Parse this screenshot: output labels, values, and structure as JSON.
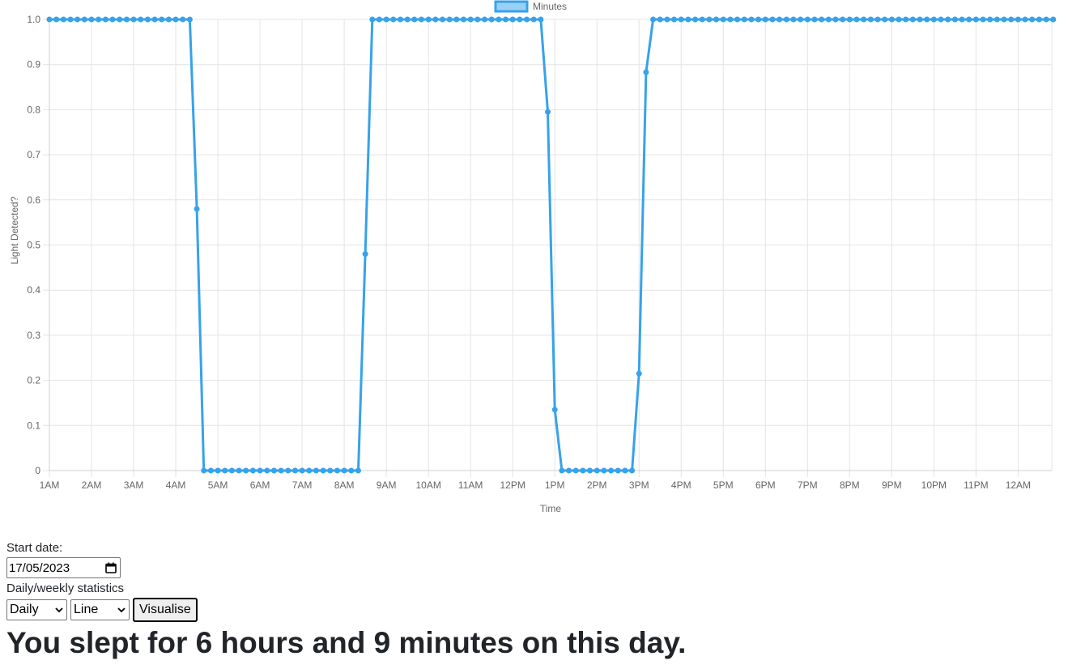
{
  "chart_data": {
    "type": "line",
    "xlabel": "Time",
    "ylabel": "Light Detected?",
    "ylim": [
      0,
      1
    ],
    "y_ticks": [
      "0",
      "0.1",
      "0.2",
      "0.3",
      "0.4",
      "0.5",
      "0.6",
      "0.7",
      "0.8",
      "0.9",
      "1.0"
    ],
    "x_ticks": [
      "1AM",
      "2AM",
      "3AM",
      "4AM",
      "5AM",
      "6AM",
      "7AM",
      "8AM",
      "9AM",
      "10AM",
      "11AM",
      "12PM",
      "1PM",
      "2PM",
      "3PM",
      "4PM",
      "5PM",
      "6PM",
      "7PM",
      "8PM",
      "9PM",
      "10PM",
      "11PM",
      "12AM"
    ],
    "x_unit": "hour of day (1 = 1AM, 24 = 12AM)",
    "xlim": [
      1,
      24.8
    ],
    "grid": true,
    "legend_position": "top",
    "series": [
      {
        "name": "Minutes",
        "color": "#36a2eb",
        "fill": "#9ad0f5",
        "points": [
          [
            1.0,
            1
          ],
          [
            1.1667,
            1
          ],
          [
            1.3333,
            1
          ],
          [
            1.5,
            1
          ],
          [
            1.6667,
            1
          ],
          [
            1.8333,
            1
          ],
          [
            2.0,
            1
          ],
          [
            2.1667,
            1
          ],
          [
            2.3333,
            1
          ],
          [
            2.5,
            1
          ],
          [
            2.6667,
            1
          ],
          [
            2.8333,
            1
          ],
          [
            3.0,
            1
          ],
          [
            3.1667,
            1
          ],
          [
            3.3333,
            1
          ],
          [
            3.5,
            1
          ],
          [
            3.6667,
            1
          ],
          [
            3.8333,
            1
          ],
          [
            4.0,
            1
          ],
          [
            4.1667,
            1
          ],
          [
            4.3333,
            1
          ],
          [
            4.5,
            0.58
          ],
          [
            4.6667,
            0
          ],
          [
            4.8333,
            0
          ],
          [
            5.0,
            0
          ],
          [
            5.1667,
            0
          ],
          [
            5.3333,
            0
          ],
          [
            5.5,
            0
          ],
          [
            5.6667,
            0
          ],
          [
            5.8333,
            0
          ],
          [
            6.0,
            0
          ],
          [
            6.1667,
            0
          ],
          [
            6.3333,
            0
          ],
          [
            6.5,
            0
          ],
          [
            6.6667,
            0
          ],
          [
            6.8333,
            0
          ],
          [
            7.0,
            0
          ],
          [
            7.1667,
            0
          ],
          [
            7.3333,
            0
          ],
          [
            7.5,
            0
          ],
          [
            7.6667,
            0
          ],
          [
            7.8333,
            0
          ],
          [
            8.0,
            0
          ],
          [
            8.1667,
            0
          ],
          [
            8.3333,
            0
          ],
          [
            8.5,
            0.48
          ],
          [
            8.6667,
            1
          ],
          [
            8.8333,
            1
          ],
          [
            9.0,
            1
          ],
          [
            9.1667,
            1
          ],
          [
            9.3333,
            1
          ],
          [
            9.5,
            1
          ],
          [
            9.6667,
            1
          ],
          [
            9.8333,
            1
          ],
          [
            10.0,
            1
          ],
          [
            10.1667,
            1
          ],
          [
            10.3333,
            1
          ],
          [
            10.5,
            1
          ],
          [
            10.6667,
            1
          ],
          [
            10.8333,
            1
          ],
          [
            11.0,
            1
          ],
          [
            11.1667,
            1
          ],
          [
            11.3333,
            1
          ],
          [
            11.5,
            1
          ],
          [
            11.6667,
            1
          ],
          [
            11.8333,
            1
          ],
          [
            12.0,
            1
          ],
          [
            12.1667,
            1
          ],
          [
            12.3333,
            1
          ],
          [
            12.5,
            1
          ],
          [
            12.6667,
            1
          ],
          [
            12.8333,
            0.795
          ],
          [
            13.0,
            0.135
          ],
          [
            13.1667,
            0
          ],
          [
            13.3333,
            0
          ],
          [
            13.5,
            0
          ],
          [
            13.6667,
            0
          ],
          [
            13.8333,
            0
          ],
          [
            14.0,
            0
          ],
          [
            14.1667,
            0
          ],
          [
            14.3333,
            0
          ],
          [
            14.5,
            0
          ],
          [
            14.6667,
            0
          ],
          [
            14.8333,
            0
          ],
          [
            15.0,
            0.215
          ],
          [
            15.1667,
            0.883
          ],
          [
            15.3333,
            1
          ],
          [
            15.5,
            1
          ],
          [
            15.6667,
            1
          ],
          [
            15.8333,
            1
          ],
          [
            16.0,
            1
          ],
          [
            16.1667,
            1
          ],
          [
            16.3333,
            1
          ],
          [
            16.5,
            1
          ],
          [
            16.6667,
            1
          ],
          [
            16.8333,
            1
          ],
          [
            17.0,
            1
          ],
          [
            17.1667,
            1
          ],
          [
            17.3333,
            1
          ],
          [
            17.5,
            1
          ],
          [
            17.6667,
            1
          ],
          [
            17.8333,
            1
          ],
          [
            18.0,
            1
          ],
          [
            18.1667,
            1
          ],
          [
            18.3333,
            1
          ],
          [
            18.5,
            1
          ],
          [
            18.6667,
            1
          ],
          [
            18.8333,
            1
          ],
          [
            19.0,
            1
          ],
          [
            19.1667,
            1
          ],
          [
            19.3333,
            1
          ],
          [
            19.5,
            1
          ],
          [
            19.6667,
            1
          ],
          [
            19.8333,
            1
          ],
          [
            20.0,
            1
          ],
          [
            20.1667,
            1
          ],
          [
            20.3333,
            1
          ],
          [
            20.5,
            1
          ],
          [
            20.6667,
            1
          ],
          [
            20.8333,
            1
          ],
          [
            21.0,
            1
          ],
          [
            21.1667,
            1
          ],
          [
            21.3333,
            1
          ],
          [
            21.5,
            1
          ],
          [
            21.6667,
            1
          ],
          [
            21.8333,
            1
          ],
          [
            22.0,
            1
          ],
          [
            22.1667,
            1
          ],
          [
            22.3333,
            1
          ],
          [
            22.5,
            1
          ],
          [
            22.6667,
            1
          ],
          [
            22.8333,
            1
          ],
          [
            23.0,
            1
          ],
          [
            23.1667,
            1
          ],
          [
            23.3333,
            1
          ],
          [
            23.5,
            1
          ],
          [
            23.6667,
            1
          ],
          [
            23.8333,
            1
          ],
          [
            24.0,
            1
          ],
          [
            24.1667,
            1
          ],
          [
            24.3333,
            1
          ],
          [
            24.5,
            1
          ],
          [
            24.6667,
            1
          ],
          [
            24.8333,
            1
          ]
        ]
      }
    ]
  },
  "controls": {
    "start_date_label": "Start date:",
    "start_date_value": "17/05/2023",
    "stats_label": "Daily/weekly statistics",
    "period_select": "Daily",
    "chart_type_select": "Line",
    "visualise_label": "Visualise"
  },
  "result_text": "You slept for 6 hours and 9 minutes on this day.",
  "icons": {
    "date_picker": "calendar-icon",
    "select_arrow": "chevron-down-icon"
  }
}
